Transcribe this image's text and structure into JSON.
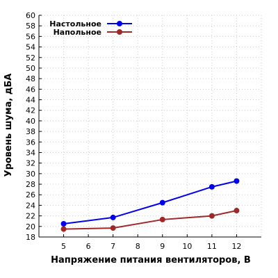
{
  "chart_data": {
    "type": "line",
    "xlabel": "Напряжение питания вентиляторов, В",
    "ylabel": "Уровень шума, дБА",
    "xlim": [
      4,
      13
    ],
    "ylim": [
      18,
      60
    ],
    "xticks": [
      5,
      6,
      7,
      8,
      9,
      10,
      11,
      12
    ],
    "yticks": [
      18,
      20,
      22,
      24,
      26,
      28,
      30,
      32,
      34,
      36,
      38,
      40,
      42,
      44,
      46,
      48,
      50,
      52,
      54,
      56,
      58,
      60
    ],
    "grid": true,
    "legend_position": "top-left",
    "series": [
      {
        "name": "Настольное",
        "color": "#0000ee",
        "x": [
          5,
          7,
          9,
          11,
          12
        ],
        "y": [
          20.5,
          21.7,
          24.5,
          27.5,
          28.6
        ]
      },
      {
        "name": "Напольное",
        "color": "#a02828",
        "x": [
          5,
          7,
          9,
          11,
          12
        ],
        "y": [
          19.5,
          19.7,
          21.3,
          22.0,
          23.0
        ]
      }
    ]
  }
}
